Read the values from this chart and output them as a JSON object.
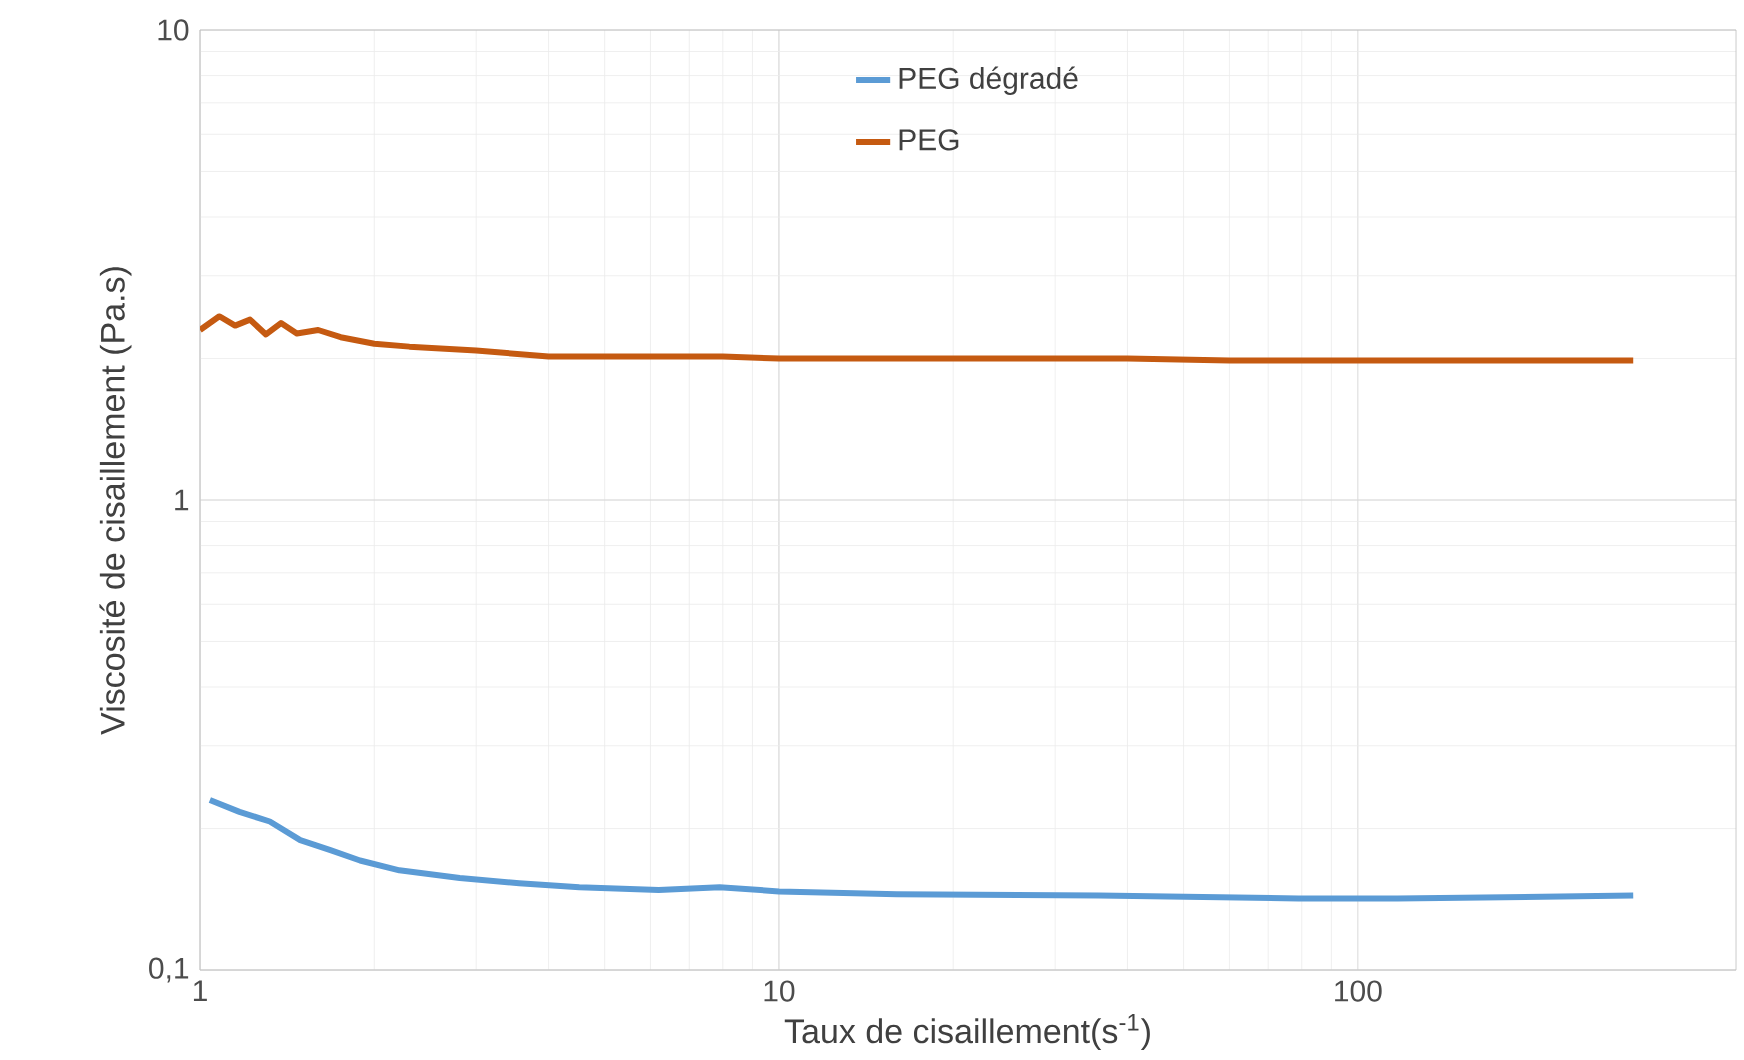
{
  "chart_data": {
    "type": "line",
    "xlabel": "Taux de cisaillement(s$^{-1}$)",
    "ylabel": "Viscosité de cisaillement (Pa.s)",
    "log": "xy",
    "grid": true,
    "legend": "top",
    "xlim": [
      1,
      450
    ],
    "ylim": [
      0.1,
      10
    ],
    "xticks": [
      1,
      10,
      100
    ],
    "yticks": [
      {
        "value": 0.1,
        "label": "0,1"
      },
      1,
      10
    ],
    "series": [
      {
        "name": "PEG dégradé",
        "color": "#5b9bd5",
        "x": [
          1.04,
          1.17,
          1.32,
          1.49,
          1.68,
          1.89,
          2.21,
          2.81,
          3.56,
          4.52,
          6.2,
          7.9,
          10,
          16,
          35.7,
          79,
          117,
          299
        ],
        "values": [
          0.23,
          0.217,
          0.207,
          0.189,
          0.18,
          0.171,
          0.163,
          0.157,
          0.153,
          0.15,
          0.148,
          0.15,
          0.147,
          0.145,
          0.144,
          0.142,
          0.142,
          0.144
        ]
      },
      {
        "name": "PEG",
        "color": "#c55a11",
        "x": [
          1.0,
          1.08,
          1.15,
          1.22,
          1.3,
          1.38,
          1.47,
          1.6,
          1.75,
          2.0,
          2.3,
          3.0,
          4.0,
          6.0,
          8.0,
          10,
          20,
          40,
          60,
          100,
          200,
          299
        ],
        "values": [
          2.3,
          2.46,
          2.35,
          2.42,
          2.25,
          2.38,
          2.26,
          2.3,
          2.22,
          2.15,
          2.12,
          2.08,
          2.02,
          2.02,
          2.02,
          2.0,
          2.0,
          2.0,
          1.98,
          1.98,
          1.98,
          1.98
        ]
      }
    ]
  }
}
